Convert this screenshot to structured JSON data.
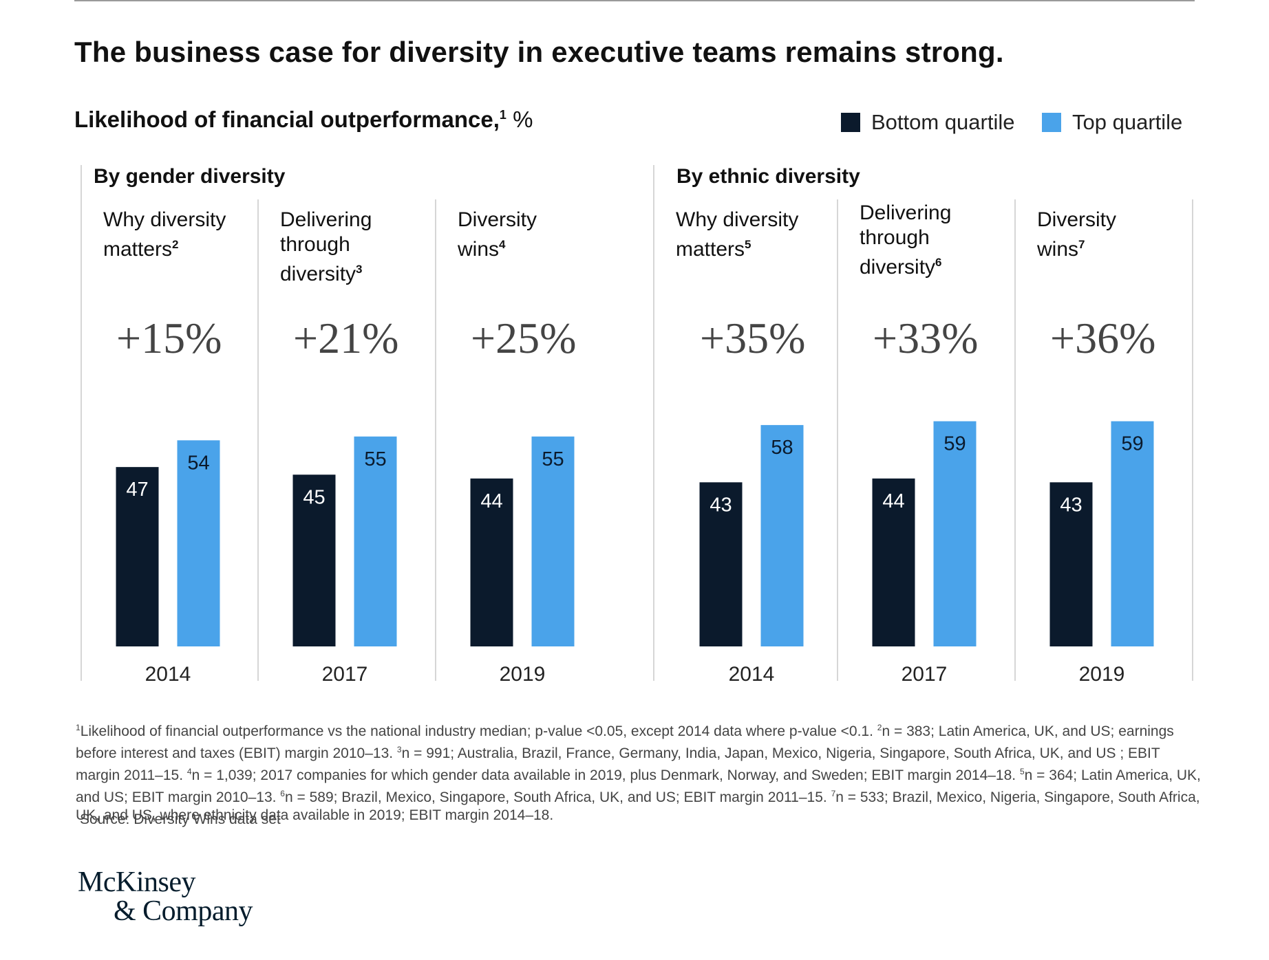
{
  "title": "The business case for diversity in executive teams remains strong.",
  "subtitle": {
    "main": "Likelihood of financial outperformance,",
    "note": "1",
    "unit": "%"
  },
  "legend": [
    {
      "label": "Bottom quartile",
      "color": "#0b1a2c"
    },
    {
      "label": "Top quartile",
      "color": "#4aa3ea"
    }
  ],
  "chart_data": {
    "type": "bar",
    "ylim": [
      0,
      70
    ],
    "grid": false,
    "legend_position": "top-right",
    "series_names": [
      "Bottom quartile",
      "Top quartile"
    ],
    "panels": [
      {
        "title": "By gender diversity",
        "groups": [
          {
            "study_lines": [
              "Why diversity",
              "matters"
            ],
            "note": "2",
            "delta": "+15%",
            "year": "2014",
            "bottom": 47,
            "top": 54
          },
          {
            "study_lines": [
              "Delivering",
              "through",
              "diversity"
            ],
            "note": "3",
            "delta": "+21%",
            "year": "2017",
            "bottom": 45,
            "top": 55
          },
          {
            "study_lines": [
              "Diversity",
              "wins"
            ],
            "note": "4",
            "delta": "+25%",
            "year": "2019",
            "bottom": 44,
            "top": 55
          }
        ]
      },
      {
        "title": "By ethnic diversity",
        "groups": [
          {
            "study_lines": [
              "Why diversity",
              "matters"
            ],
            "note": "5",
            "delta": "+35%",
            "year": "2014",
            "bottom": 43,
            "top": 58
          },
          {
            "study_lines": [
              "Delivering",
              "through",
              "diversity"
            ],
            "note": "6",
            "delta": "+33%",
            "year": "2017",
            "bottom": 44,
            "top": 59
          },
          {
            "study_lines": [
              "Diversity",
              "wins"
            ],
            "note": "7",
            "delta": "+36%",
            "year": "2019",
            "bottom": 43,
            "top": 59
          }
        ]
      }
    ]
  },
  "footnotes": [
    {
      "note": "1",
      "text": "Likelihood of financial outperformance vs the national industry median; p-value <0.05, except 2014 data where p-value <0.1. "
    },
    {
      "note": "2",
      "text": "n = 383; Latin America, UK, and US; earnings before interest and taxes (EBIT) margin 2010–13. "
    },
    {
      "note": "3",
      "text": "n = 991; Australia, Brazil, France, Germany, India, Japan, Mexico, Nigeria, Singapore, South Africa, UK, and US ; EBIT margin 2011–15. "
    },
    {
      "note": "4",
      "text": "n = 1,039; 2017 companies for which gender data available in 2019, plus Denmark, Norway, and Sweden; EBIT margin 2014–18. "
    },
    {
      "note": "5",
      "text": "n = 364; Latin America, UK, and US; EBIT margin 2010–13. "
    },
    {
      "note": "6",
      "text": "n = 589; Brazil, Mexico, Singapore, South Africa, UK, and US; EBIT margin 2011–15. "
    },
    {
      "note": "7",
      "text": "n = 533; Brazil, Mexico, Nigeria, Singapore, South Africa, UK, and US, where ethnicity data available in 2019; EBIT margin 2014–18."
    }
  ],
  "source": "Source: Diversity Wins data set",
  "logo": {
    "line1": "McKinsey",
    "line2": "& Company"
  }
}
